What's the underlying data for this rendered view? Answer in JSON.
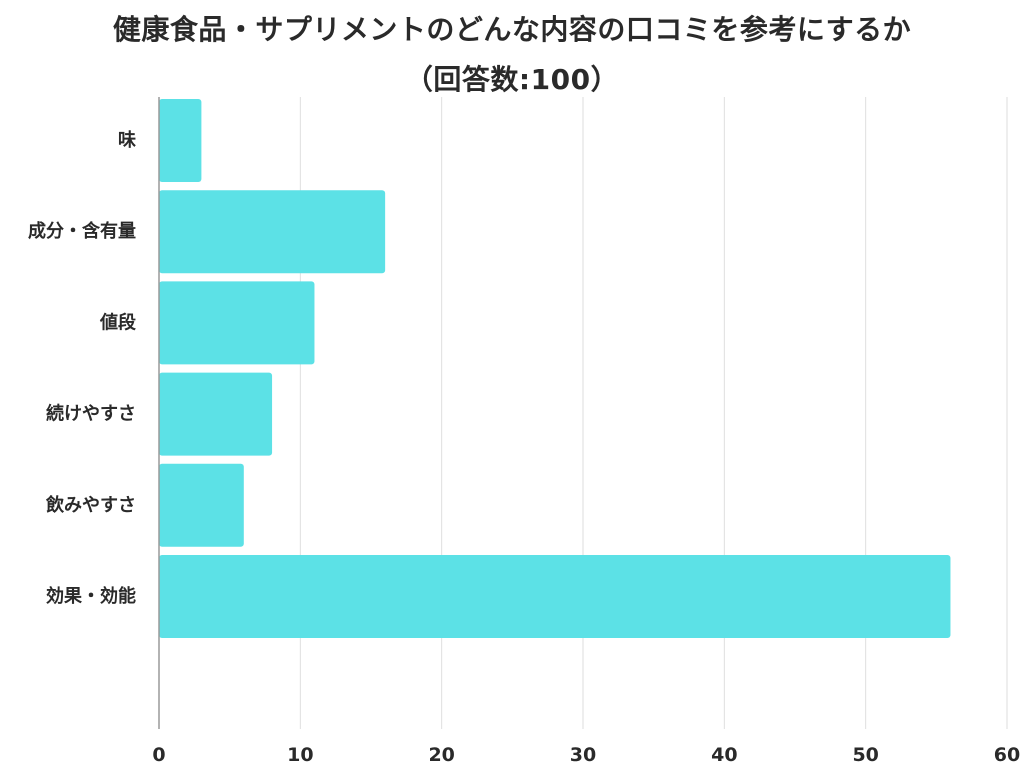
{
  "title": {
    "line1": "健康食品・サプリメントのどんな内容の口コミを参考にするか",
    "line2": "（回答数:100）"
  },
  "colors": {
    "bar": "#5ce1e6",
    "grid": "#dedede",
    "axis": "#9a9a9a",
    "text": "#2a2a2a"
  },
  "chart_data": {
    "type": "bar",
    "orientation": "horizontal",
    "categories": [
      "味",
      "成分・含有量",
      "値段",
      "続けやすさ",
      "飲みやすさ",
      "効果・効能"
    ],
    "values": [
      3,
      16,
      11,
      8,
      6,
      56
    ],
    "xlim": [
      0,
      60
    ],
    "xticks": [
      0,
      10,
      20,
      30,
      40,
      50,
      60
    ],
    "grid": "vertical",
    "legend": "none"
  }
}
